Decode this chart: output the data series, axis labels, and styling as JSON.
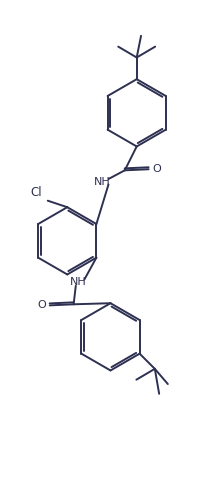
{
  "bg_color": "#ffffff",
  "line_color": "#2d3050",
  "line_width": 1.4,
  "figsize": [
    2.17,
    4.86
  ],
  "dpi": 100,
  "xlim": [
    0,
    10
  ],
  "ylim": [
    0,
    22.4
  ]
}
